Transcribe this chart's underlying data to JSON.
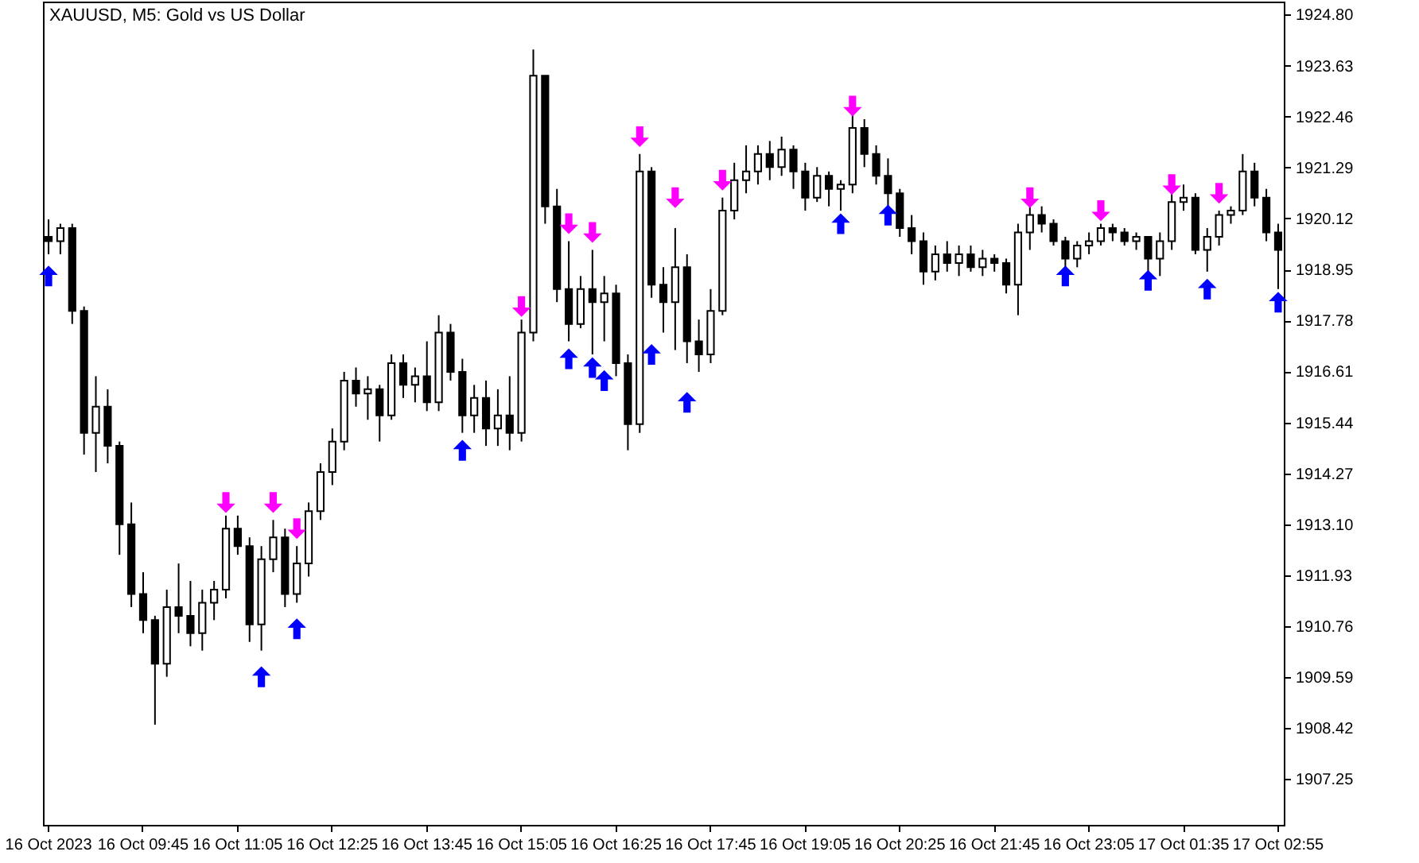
{
  "chart_data": {
    "type": "candlestick",
    "title": "XAUUSD, M5:  Gold vs US Dollar",
    "categories": [
      "16 Oct 2023",
      null,
      null,
      null,
      null,
      null,
      null,
      null,
      "16 Oct 09:45",
      null,
      null,
      null,
      null,
      null,
      null,
      null,
      "16 Oct 11:05",
      null,
      null,
      null,
      null,
      null,
      null,
      null,
      "16 Oct 12:25",
      null,
      null,
      null,
      null,
      null,
      null,
      null,
      "16 Oct 13:45",
      null,
      null,
      null,
      null,
      null,
      null,
      null,
      "16 Oct 15:05",
      null,
      null,
      null,
      null,
      null,
      null,
      null,
      "16 Oct 16:25",
      null,
      null,
      null,
      null,
      null,
      null,
      null,
      "16 Oct 17:45",
      null,
      null,
      null,
      null,
      null,
      null,
      null,
      "16 Oct 19:05",
      null,
      null,
      null,
      null,
      null,
      null,
      null,
      "16 Oct 20:25",
      null,
      null,
      null,
      null,
      null,
      null,
      null,
      "16 Oct 21:45",
      null,
      null,
      null,
      null,
      null,
      null,
      null,
      "16 Oct 23:05",
      null,
      null,
      null,
      null,
      null,
      null,
      null,
      "17 Oct 01:35",
      null,
      null,
      null,
      null,
      null,
      null,
      null,
      "17 Oct 02:55"
    ],
    "ohlc": [
      [
        1919.7,
        1920.1,
        1919.3,
        1919.6
      ],
      [
        1919.6,
        1920.0,
        1919.3,
        1919.9
      ],
      [
        1919.9,
        1920.0,
        1917.7,
        1918.0
      ],
      [
        1918.0,
        1918.1,
        1914.7,
        1915.2
      ],
      [
        1915.2,
        1916.5,
        1914.3,
        1915.8
      ],
      [
        1915.8,
        1916.2,
        1914.5,
        1914.9
      ],
      [
        1914.9,
        1915.0,
        1912.4,
        1913.1
      ],
      [
        1913.1,
        1913.6,
        1911.2,
        1911.5
      ],
      [
        1911.5,
        1912.0,
        1910.6,
        1910.9
      ],
      [
        1910.9,
        1911.0,
        1908.5,
        1909.9
      ],
      [
        1909.9,
        1911.6,
        1909.6,
        1911.2
      ],
      [
        1911.2,
        1912.2,
        1910.6,
        1911.0
      ],
      [
        1911.0,
        1911.8,
        1910.3,
        1910.6
      ],
      [
        1910.6,
        1911.6,
        1910.2,
        1911.3
      ],
      [
        1911.3,
        1911.8,
        1910.9,
        1911.6
      ],
      [
        1911.6,
        1913.3,
        1911.4,
        1913.0
      ],
      [
        1913.0,
        1913.3,
        1912.4,
        1912.6
      ],
      [
        1912.6,
        1912.8,
        1910.4,
        1910.8
      ],
      [
        1910.8,
        1912.6,
        1910.2,
        1912.3
      ],
      [
        1912.3,
        1913.2,
        1912.0,
        1912.8
      ],
      [
        1912.8,
        1913.0,
        1911.2,
        1911.5
      ],
      [
        1911.5,
        1912.6,
        1911.3,
        1912.2
      ],
      [
        1912.2,
        1913.6,
        1911.9,
        1913.4
      ],
      [
        1913.4,
        1914.5,
        1913.2,
        1914.3
      ],
      [
        1914.3,
        1915.3,
        1914.0,
        1915.0
      ],
      [
        1915.0,
        1916.6,
        1914.8,
        1916.4
      ],
      [
        1916.4,
        1916.7,
        1915.8,
        1916.1
      ],
      [
        1916.1,
        1916.5,
        1915.5,
        1916.2
      ],
      [
        1916.2,
        1916.3,
        1915.0,
        1915.6
      ],
      [
        1915.6,
        1917.0,
        1915.5,
        1916.8
      ],
      [
        1916.8,
        1917.0,
        1916.0,
        1916.3
      ],
      [
        1916.3,
        1916.7,
        1915.9,
        1916.5
      ],
      [
        1916.5,
        1917.3,
        1915.7,
        1915.9
      ],
      [
        1915.9,
        1917.9,
        1915.7,
        1917.5
      ],
      [
        1917.5,
        1917.7,
        1916.4,
        1916.6
      ],
      [
        1916.6,
        1916.9,
        1915.2,
        1915.6
      ],
      [
        1915.6,
        1916.3,
        1915.2,
        1916.0
      ],
      [
        1916.0,
        1916.4,
        1914.9,
        1915.3
      ],
      [
        1915.3,
        1916.2,
        1914.9,
        1915.6
      ],
      [
        1915.6,
        1916.5,
        1914.8,
        1915.2
      ],
      [
        1915.2,
        1917.8,
        1915.0,
        1917.5
      ],
      [
        1917.5,
        1924.0,
        1917.3,
        1923.4
      ],
      [
        1923.4,
        1923.4,
        1920.0,
        1920.4
      ],
      [
        1920.4,
        1920.8,
        1918.2,
        1918.5
      ],
      [
        1918.5,
        1919.6,
        1917.3,
        1917.7
      ],
      [
        1917.7,
        1918.8,
        1917.6,
        1918.5
      ],
      [
        1918.5,
        1919.4,
        1917.0,
        1918.2
      ],
      [
        1918.2,
        1918.8,
        1917.3,
        1918.4
      ],
      [
        1918.4,
        1918.6,
        1916.5,
        1916.8
      ],
      [
        1916.8,
        1917.0,
        1914.8,
        1915.4
      ],
      [
        1915.4,
        1921.6,
        1915.2,
        1921.2
      ],
      [
        1921.2,
        1921.3,
        1918.3,
        1918.6
      ],
      [
        1918.6,
        1919.0,
        1917.5,
        1918.2
      ],
      [
        1918.2,
        1919.9,
        1917.1,
        1919.0
      ],
      [
        1919.0,
        1919.3,
        1916.8,
        1917.3
      ],
      [
        1917.3,
        1917.8,
        1916.6,
        1917.0
      ],
      [
        1917.0,
        1918.5,
        1916.8,
        1918.0
      ],
      [
        1918.0,
        1920.6,
        1917.9,
        1920.3
      ],
      [
        1920.3,
        1921.4,
        1920.1,
        1921.0
      ],
      [
        1921.0,
        1921.8,
        1920.7,
        1921.2
      ],
      [
        1921.2,
        1921.8,
        1920.9,
        1921.6
      ],
      [
        1921.6,
        1921.9,
        1921.0,
        1921.3
      ],
      [
        1921.3,
        1922.0,
        1921.1,
        1921.7
      ],
      [
        1921.7,
        1921.8,
        1920.8,
        1921.2
      ],
      [
        1921.2,
        1921.4,
        1920.3,
        1920.6
      ],
      [
        1920.6,
        1921.3,
        1920.5,
        1921.1
      ],
      [
        1921.1,
        1921.2,
        1920.4,
        1920.8
      ],
      [
        1920.8,
        1921.0,
        1920.3,
        1920.9
      ],
      [
        1920.9,
        1922.5,
        1920.7,
        1922.2
      ],
      [
        1922.2,
        1922.4,
        1921.3,
        1921.6
      ],
      [
        1921.6,
        1921.8,
        1920.9,
        1921.1
      ],
      [
        1921.1,
        1921.5,
        1920.4,
        1920.7
      ],
      [
        1920.7,
        1920.8,
        1919.7,
        1919.9
      ],
      [
        1919.9,
        1920.2,
        1919.3,
        1919.6
      ],
      [
        1919.6,
        1919.8,
        1918.6,
        1918.9
      ],
      [
        1918.9,
        1919.5,
        1918.7,
        1919.3
      ],
      [
        1919.3,
        1919.6,
        1918.9,
        1919.1
      ],
      [
        1919.1,
        1919.5,
        1918.8,
        1919.3
      ],
      [
        1919.3,
        1919.5,
        1918.9,
        1919.0
      ],
      [
        1919.0,
        1919.4,
        1918.8,
        1919.2
      ],
      [
        1919.2,
        1919.3,
        1918.9,
        1919.1
      ],
      [
        1919.1,
        1919.2,
        1918.4,
        1918.6
      ],
      [
        1918.6,
        1920.0,
        1917.9,
        1919.8
      ],
      [
        1919.8,
        1920.4,
        1919.4,
        1920.2
      ],
      [
        1920.2,
        1920.4,
        1919.8,
        1920.0
      ],
      [
        1920.0,
        1920.1,
        1919.5,
        1919.6
      ],
      [
        1919.6,
        1919.7,
        1919.0,
        1919.2
      ],
      [
        1919.2,
        1919.6,
        1919.0,
        1919.5
      ],
      [
        1919.5,
        1919.8,
        1919.3,
        1919.6
      ],
      [
        1919.6,
        1920.0,
        1919.5,
        1919.9
      ],
      [
        1919.9,
        1920.0,
        1919.6,
        1919.8
      ],
      [
        1919.8,
        1919.9,
        1919.5,
        1919.6
      ],
      [
        1919.6,
        1919.8,
        1919.4,
        1919.7
      ],
      [
        1919.7,
        1919.7,
        1918.9,
        1919.2
      ],
      [
        1919.2,
        1919.8,
        1918.8,
        1919.6
      ],
      [
        1919.6,
        1920.7,
        1919.4,
        1920.5
      ],
      [
        1920.5,
        1920.9,
        1920.3,
        1920.6
      ],
      [
        1920.6,
        1920.7,
        1919.3,
        1919.4
      ],
      [
        1919.4,
        1919.9,
        1918.9,
        1919.7
      ],
      [
        1919.7,
        1920.3,
        1919.5,
        1920.2
      ],
      [
        1920.2,
        1920.4,
        1920.0,
        1920.3
      ],
      [
        1920.3,
        1921.6,
        1920.2,
        1921.2
      ],
      [
        1921.2,
        1921.4,
        1920.4,
        1920.6
      ],
      [
        1920.6,
        1920.8,
        1919.6,
        1919.8
      ],
      [
        1919.8,
        1920.0,
        1918.5,
        1919.4
      ]
    ],
    "series": [
      {
        "type": "scatter",
        "color": "#0000ff",
        "values": [
          1918.8,
          null,
          null,
          null,
          null,
          null,
          null,
          null,
          null,
          null,
          null,
          null,
          null,
          null,
          null,
          null,
          null,
          null,
          1909.6,
          null,
          null,
          1910.7,
          null,
          null,
          null,
          null,
          null,
          null,
          null,
          null,
          null,
          null,
          null,
          null,
          null,
          1914.8,
          null,
          null,
          null,
          null,
          null,
          null,
          null,
          null,
          1916.9,
          null,
          1916.7,
          1916.4,
          null,
          null,
          null,
          1917.0,
          null,
          null,
          1915.9,
          null,
          null,
          null,
          null,
          null,
          null,
          null,
          null,
          null,
          null,
          null,
          null,
          1920.0,
          null,
          null,
          null,
          1920.2,
          null,
          null,
          null,
          null,
          null,
          null,
          null,
          null,
          null,
          null,
          null,
          null,
          null,
          null,
          1918.8,
          null,
          null,
          null,
          null,
          null,
          null,
          1918.7,
          null,
          null,
          null,
          null,
          1918.5,
          null,
          null,
          null,
          null,
          null,
          1918.2
        ]
      },
      {
        "type": "scatter",
        "color": "#ff00ff",
        "values": [
          null,
          null,
          null,
          null,
          null,
          null,
          null,
          null,
          null,
          null,
          null,
          null,
          null,
          null,
          null,
          1913.6,
          null,
          null,
          null,
          1913.6,
          null,
          1913.0,
          null,
          null,
          null,
          null,
          null,
          null,
          null,
          null,
          null,
          null,
          null,
          null,
          null,
          null,
          null,
          null,
          null,
          null,
          1918.1,
          null,
          null,
          null,
          1920.0,
          null,
          1919.8,
          null,
          null,
          null,
          1922.0,
          null,
          null,
          1920.6,
          null,
          null,
          null,
          1921.0,
          null,
          null,
          null,
          null,
          null,
          null,
          null,
          null,
          null,
          null,
          1922.7,
          null,
          null,
          null,
          null,
          null,
          null,
          null,
          null,
          null,
          null,
          null,
          null,
          null,
          null,
          1920.6,
          null,
          null,
          null,
          null,
          null,
          1920.3,
          null,
          null,
          null,
          null,
          null,
          1920.9,
          null,
          null,
          null,
          1920.7,
          null,
          null,
          null,
          null,
          null
        ]
      }
    ],
    "ylim": [
      1906.2,
      1925.1
    ],
    "yticks": [
      {
        "value": 1924.8,
        "label": "1924.80"
      },
      1923.63,
      1922.46,
      1921.29,
      1920.12,
      1918.95,
      1917.78,
      1916.61,
      1915.44,
      1914.27,
      {
        "value": 1913.1,
        "label": "1913.10"
      },
      1911.93,
      1910.76,
      1909.59,
      1908.42,
      1907.25
    ]
  }
}
